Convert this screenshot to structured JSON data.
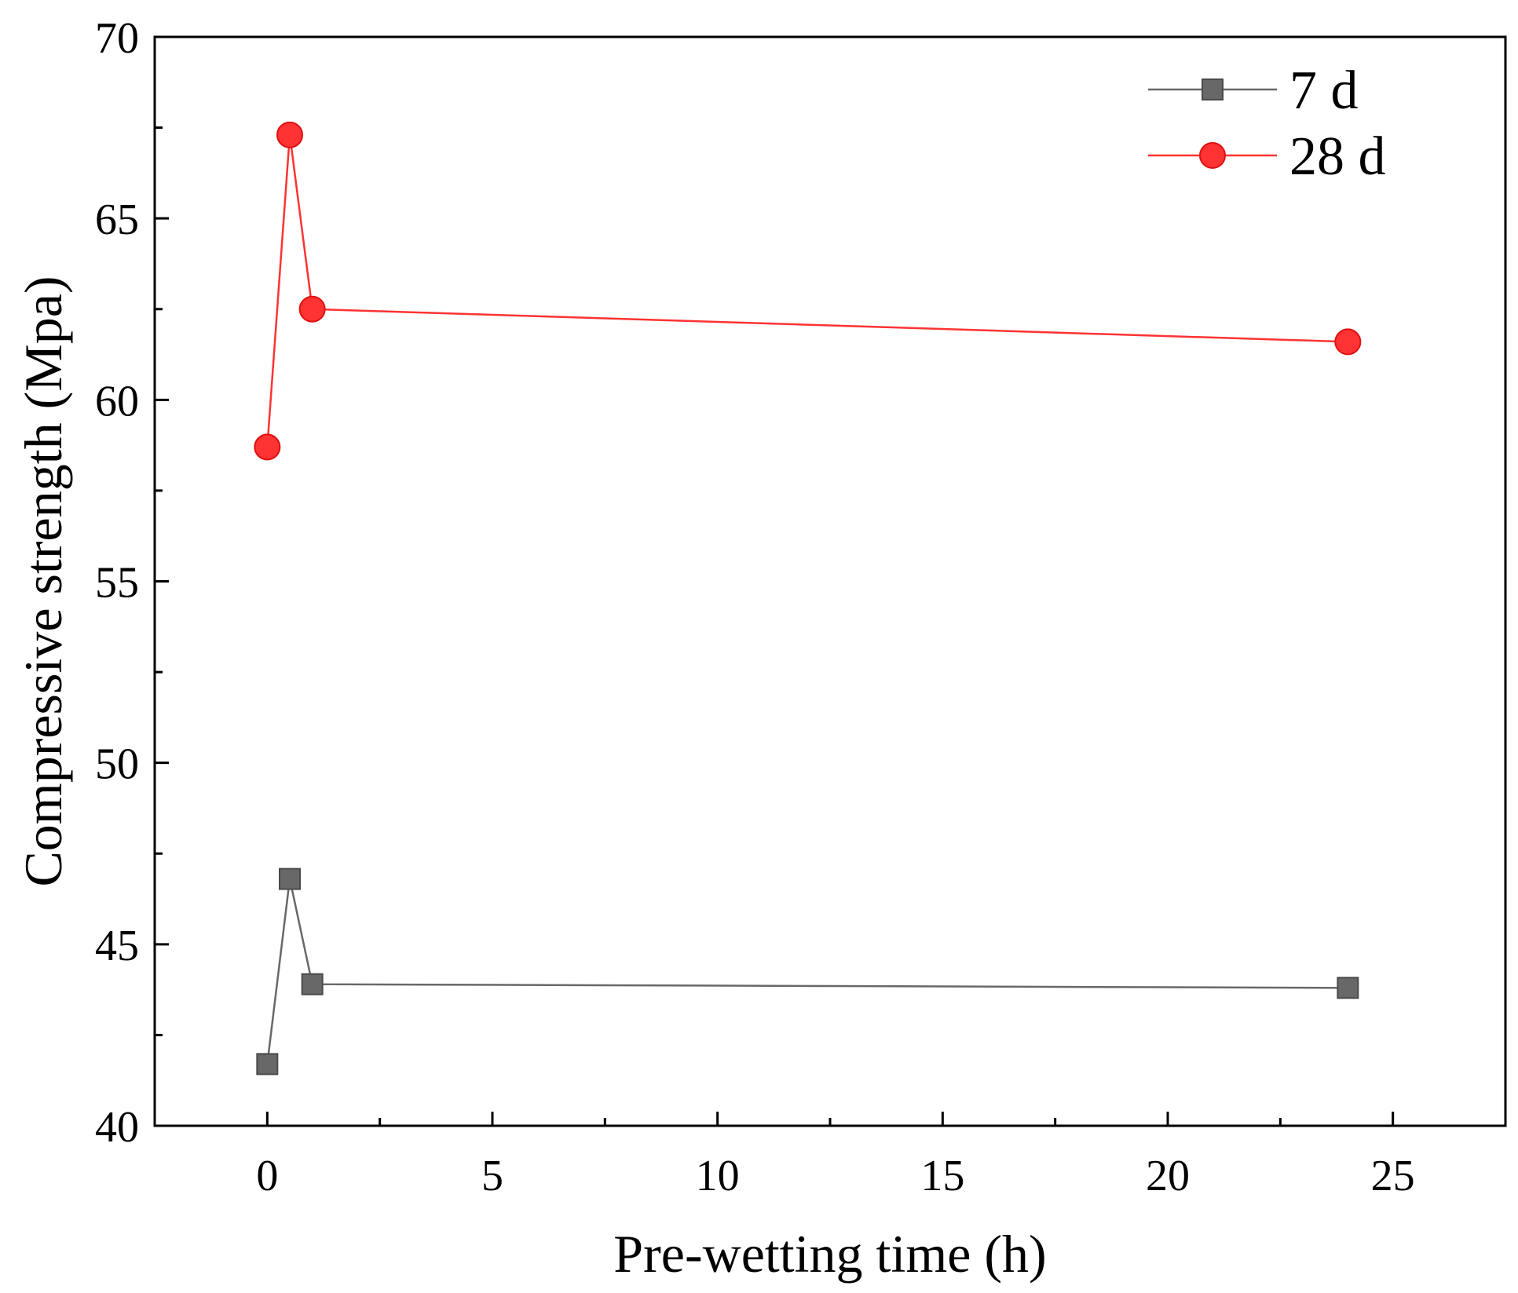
{
  "chart_data": {
    "type": "line",
    "title": "",
    "xlabel": "Pre-wetting time (h)",
    "ylabel": "Compressive strength (Mpa)",
    "xlim": [
      -2.5,
      27.5
    ],
    "ylim": [
      40,
      70
    ],
    "xticks": [
      0,
      5,
      10,
      15,
      20,
      25
    ],
    "yticks": [
      40,
      45,
      50,
      55,
      60,
      65,
      70
    ],
    "x_minor_step": 2.5,
    "y_minor_step": 2.5,
    "grid": false,
    "legend_position": "top-right",
    "x": [
      0,
      0.5,
      1,
      24
    ],
    "series": [
      {
        "name": "7 d",
        "marker": "square",
        "color": "#686868",
        "values": [
          41.7,
          46.8,
          43.9,
          43.8
        ]
      },
      {
        "name": "28 d",
        "marker": "circle",
        "color": "#ff3333",
        "values": [
          58.7,
          67.3,
          62.5,
          61.6
        ]
      }
    ]
  }
}
